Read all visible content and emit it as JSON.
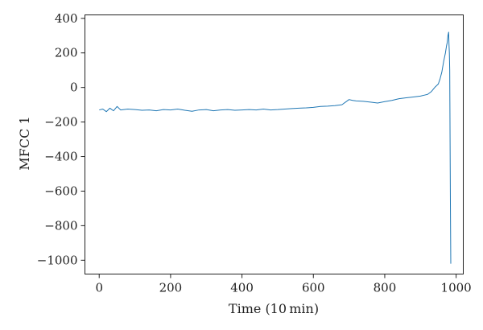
{
  "chart_data": {
    "type": "line",
    "title": "",
    "xlabel": "Time (10 min)",
    "ylabel": "MFCC 1",
    "xlim": [
      -40,
      1020
    ],
    "ylim": [
      -1080,
      420
    ],
    "xticks": [
      0,
      200,
      400,
      600,
      800,
      1000
    ],
    "yticks": [
      400,
      200,
      0,
      -200,
      -400,
      -600,
      -800,
      -1000
    ],
    "xtick_labels": [
      "0",
      "200",
      "400",
      "600",
      "800",
      "1000"
    ],
    "ytick_labels": [
      "400",
      "200",
      "0",
      "−200",
      "−400",
      "−600",
      "−800",
      "−1000"
    ],
    "grid": false,
    "legend": "none",
    "series": [
      {
        "color": "#1f77b4",
        "x": [
          0,
          10,
          20,
          30,
          40,
          50,
          60,
          80,
          100,
          120,
          140,
          160,
          180,
          200,
          220,
          240,
          260,
          280,
          300,
          320,
          340,
          360,
          380,
          400,
          420,
          440,
          460,
          480,
          500,
          520,
          540,
          560,
          580,
          600,
          620,
          640,
          660,
          680,
          700,
          710,
          720,
          740,
          760,
          780,
          800,
          820,
          840,
          860,
          880,
          900,
          910,
          920,
          930,
          940,
          950,
          955,
          960,
          965,
          970,
          973,
          975,
          977,
          979,
          980,
          981,
          982,
          983,
          984,
          985
        ],
        "y": [
          -130,
          -125,
          -140,
          -120,
          -135,
          -110,
          -130,
          -125,
          -128,
          -132,
          -130,
          -135,
          -128,
          -130,
          -125,
          -132,
          -138,
          -130,
          -128,
          -135,
          -130,
          -128,
          -132,
          -130,
          -128,
          -130,
          -125,
          -130,
          -128,
          -125,
          -122,
          -120,
          -118,
          -115,
          -110,
          -108,
          -105,
          -100,
          -70,
          -75,
          -78,
          -80,
          -85,
          -90,
          -82,
          -75,
          -65,
          -60,
          -55,
          -50,
          -45,
          -40,
          -25,
          0,
          20,
          50,
          90,
          150,
          200,
          240,
          260,
          300,
          320,
          250,
          200,
          100,
          -300,
          -700,
          -1020
        ]
      }
    ]
  }
}
